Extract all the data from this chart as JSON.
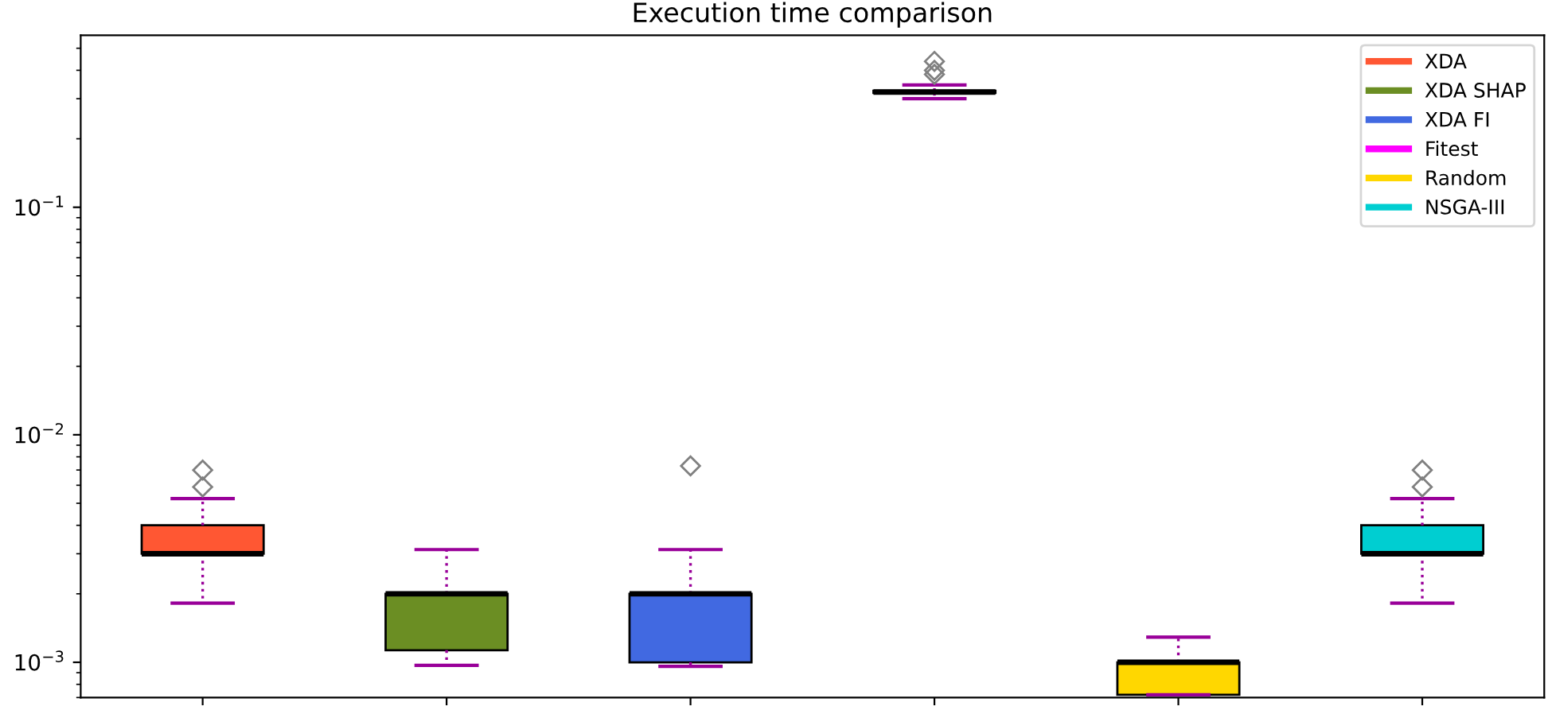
{
  "chart_data": {
    "type": "box",
    "title": "Execution time comparison",
    "categories": [
      null,
      null,
      null,
      null,
      null,
      null
    ],
    "series": [
      {
        "name": "XDA",
        "color": "#ff5733",
        "boxes": [
          {
            "low": 0.00182,
            "q1": 0.003,
            "median": 0.003,
            "q3": 0.004,
            "high": 0.00524,
            "outliers": [
              0.0059,
              0.007
            ]
          },
          null,
          null,
          null,
          null,
          null
        ]
      },
      {
        "name": "XDA SHAP",
        "color": "#6b8e23",
        "boxes": [
          null,
          {
            "low": 0.00097,
            "q1": 0.00113,
            "median": 0.002,
            "q3": 0.002,
            "high": 0.00313
          },
          null,
          null,
          null,
          null
        ]
      },
      {
        "name": "XDA FI",
        "color": "#4169e1",
        "boxes": [
          null,
          null,
          {
            "low": 0.00096,
            "q1": 0.001,
            "median": 0.002,
            "q3": 0.002,
            "high": 0.00313,
            "outliers": [
              0.0073
            ]
          },
          null,
          null,
          null
        ]
      },
      {
        "name": "Fitest",
        "color": "#ff00ff",
        "boxes": [
          null,
          null,
          null,
          {
            "low": 0.3,
            "q1": 0.318,
            "median": 0.321,
            "q3": 0.325,
            "high": 0.345,
            "outliers": [
              0.384,
              0.4,
              0.438
            ]
          },
          null,
          null
        ]
      },
      {
        "name": "Random",
        "color": "#ffd700",
        "boxes": [
          null,
          null,
          null,
          null,
          {
            "low": 0.00072,
            "q1": 0.00072,
            "median": 0.001,
            "q3": 0.001,
            "high": 0.00129
          },
          null
        ]
      },
      {
        "name": "NSGA-III",
        "color": "#00ced1",
        "boxes": [
          null,
          null,
          null,
          null,
          null,
          {
            "low": 0.00182,
            "q1": 0.003,
            "median": 0.003,
            "q3": 0.004,
            "high": 0.00524,
            "outliers": [
              0.0059,
              0.007
            ]
          }
        ]
      }
    ],
    "log": "y",
    "ylim": [
      0.0007,
      0.57
    ],
    "yticks": [
      {
        "value": 0.001,
        "label": "10$^{−3}$"
      },
      {
        "value": 0.01,
        "label": "10$^{−2}$"
      },
      {
        "value": 0.1,
        "label": "10$^{−1}$"
      }
    ],
    "tick_labels": "y",
    "legend": "top right",
    "grid": false
  }
}
